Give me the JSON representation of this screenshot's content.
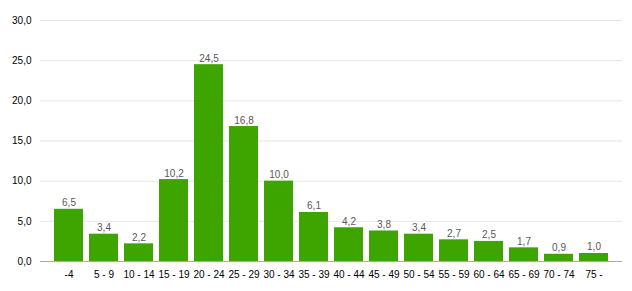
{
  "chart_data": {
    "type": "bar",
    "categories": [
      "-4",
      "5 - 9",
      "10 - 14",
      "15 - 19",
      "20 - 24",
      "25 - 29",
      "30 - 34",
      "35 - 39",
      "40 - 44",
      "45 - 49",
      "50 - 54",
      "55 - 59",
      "60 - 64",
      "65 - 69",
      "70 - 74",
      "75 -"
    ],
    "values": [
      6.5,
      3.4,
      2.2,
      10.2,
      24.5,
      16.8,
      10.0,
      6.1,
      4.2,
      3.8,
      3.4,
      2.7,
      2.5,
      1.7,
      0.9,
      1.0
    ],
    "value_labels": [
      "6,5",
      "3,4",
      "2,2",
      "10,2",
      "24,5",
      "16,8",
      "10,0",
      "6,1",
      "4,2",
      "3,8",
      "3,4",
      "2,7",
      "2,5",
      "1,7",
      "0,9",
      "1,0"
    ],
    "color": "#3ea500",
    "ylim": [
      0,
      30
    ],
    "yticks": [
      {
        "value": 0,
        "label": "0,0"
      },
      {
        "value": 5,
        "label": "5,0"
      },
      {
        "value": 10,
        "label": "10,0"
      },
      {
        "value": 15,
        "label": "15,0"
      },
      {
        "value": 20,
        "label": "20,0"
      },
      {
        "value": 25,
        "label": "25,0"
      },
      {
        "value": 30,
        "label": "30,0"
      }
    ],
    "grid": true,
    "data_labels": true
  }
}
